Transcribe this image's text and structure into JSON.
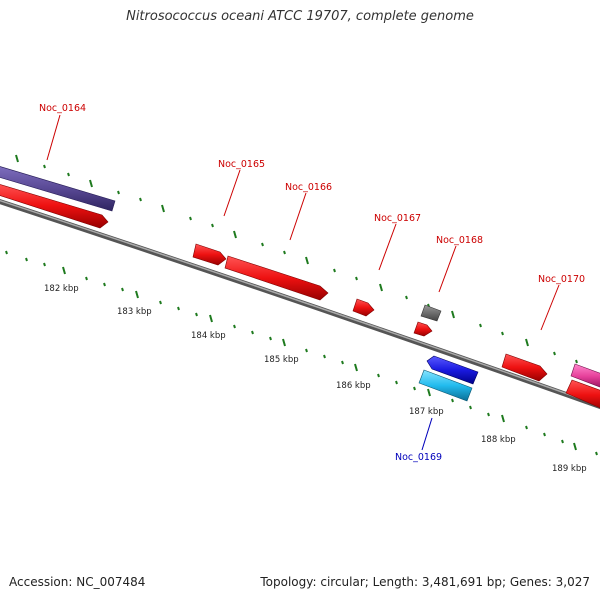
{
  "title": "Nitrosococcus oceani ATCC 19707, complete genome",
  "footer": {
    "accession": "Accession: NC_007484",
    "summary": "Topology: circular; Length: 3,481,691 bp; Genes: 3,027"
  },
  "colors": {
    "plus_strand_red": "#ee1111",
    "backbone": "#888888",
    "tick": "#1e7a1e",
    "label_red": "#cc0000",
    "label_blue": "#0000bb",
    "purple": "#5a4a96",
    "grey_gene": "#666666",
    "blue_gene": "#1a1ae0",
    "cyan_gene": "#22bbee",
    "magenta_gene": "#e6409a"
  },
  "genes": [
    {
      "id": "Noc_0164",
      "label": "Noc_0164",
      "color_key": "label_red"
    },
    {
      "id": "Noc_0165",
      "label": "Noc_0165",
      "color_key": "label_red"
    },
    {
      "id": "Noc_0166",
      "label": "Noc_0166",
      "color_key": "label_red"
    },
    {
      "id": "Noc_0167",
      "label": "Noc_0167",
      "color_key": "label_red"
    },
    {
      "id": "Noc_0168",
      "label": "Noc_0168",
      "color_key": "label_red"
    },
    {
      "id": "Noc_0169",
      "label": "Noc_0169",
      "color_key": "label_blue"
    },
    {
      "id": "Noc_0170",
      "label": "Noc_0170",
      "color_key": "label_red"
    }
  ],
  "kbp_labels": [
    "182 kbp",
    "183 kbp",
    "184 kbp",
    "185 kbp",
    "186 kbp",
    "187 kbp",
    "188 kbp",
    "189 kbp"
  ]
}
